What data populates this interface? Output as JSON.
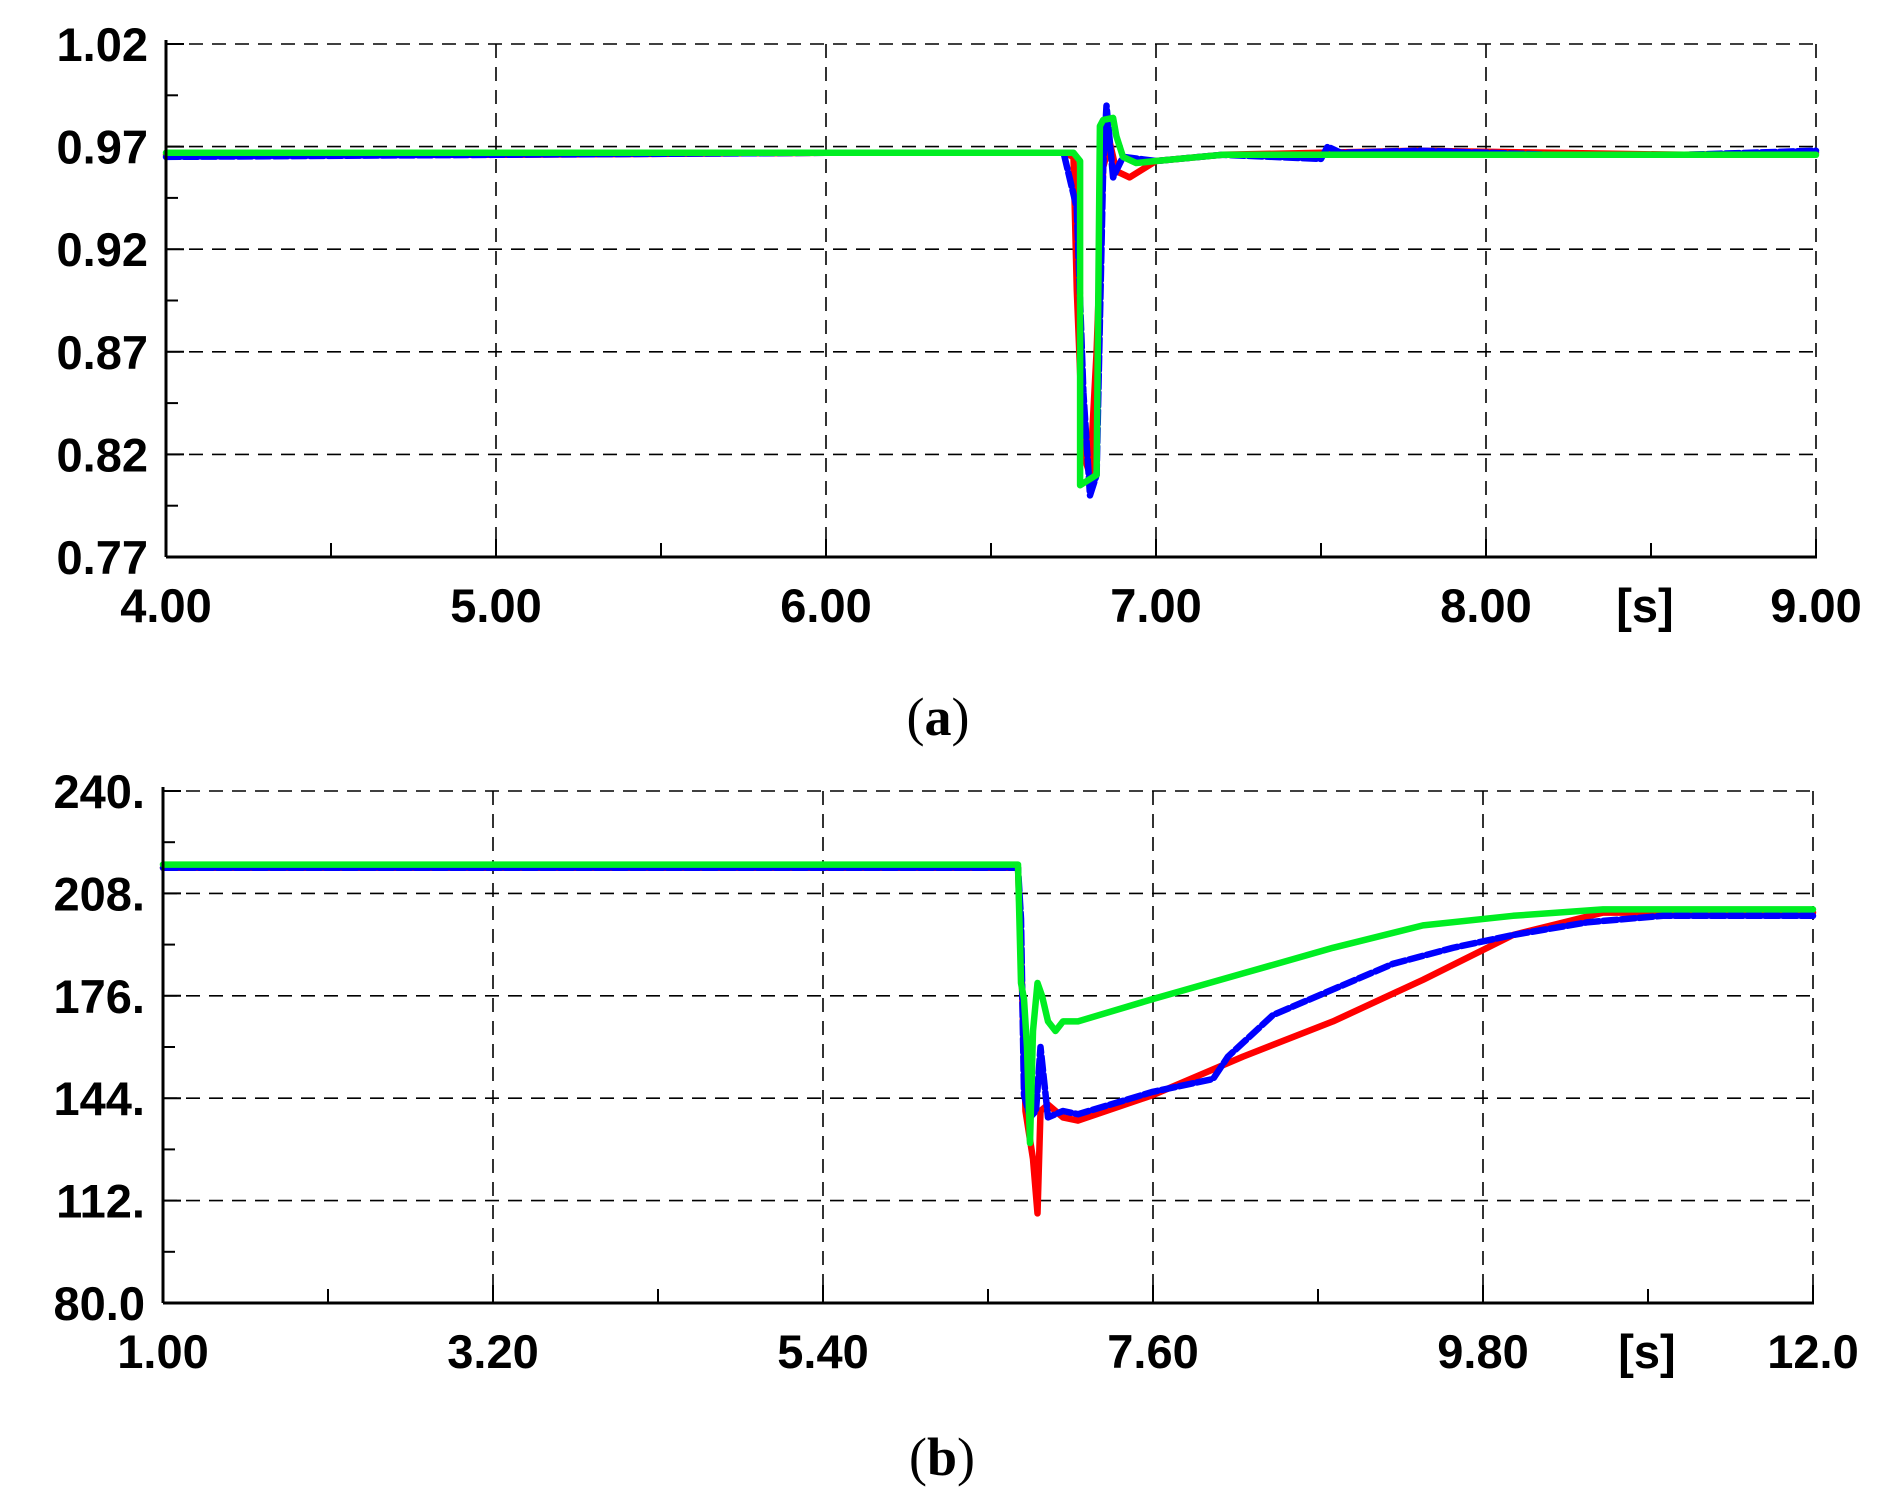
{
  "chart_data": [
    {
      "type": "line",
      "caption": "(a)",
      "x_unit_label": "[s]",
      "xlim": [
        4.0,
        9.0
      ],
      "ylim": [
        0.77,
        1.02
      ],
      "x_ticks": [
        4.0,
        5.0,
        6.0,
        7.0,
        8.0,
        9.0
      ],
      "x_tick_labels": [
        "4.00",
        "5.00",
        "6.00",
        "7.00",
        "8.00",
        "9.00"
      ],
      "y_ticks": [
        0.77,
        0.82,
        0.87,
        0.92,
        0.97,
        1.02
      ],
      "y_tick_labels": [
        "0.77",
        "0.82",
        "0.87",
        "0.92",
        "0.97",
        "1.02"
      ],
      "grid": true,
      "series": [
        {
          "color": "#ff0000",
          "dashed": false,
          "x": [
            4.0,
            5.0,
            6.0,
            6.72,
            6.75,
            6.76,
            6.78,
            6.8,
            6.82,
            6.84,
            6.86,
            6.88,
            6.92,
            7.0,
            7.2,
            7.5,
            7.8,
            8.2,
            8.6,
            9.0
          ],
          "y": [
            0.966,
            0.966,
            0.967,
            0.967,
            0.965,
            0.9,
            0.82,
            0.81,
            0.87,
            0.96,
            0.972,
            0.958,
            0.955,
            0.963,
            0.966,
            0.967,
            0.968,
            0.967,
            0.966,
            0.967
          ]
        },
        {
          "color": "#0000ff",
          "dashed": true,
          "x": [
            4.0,
            5.0,
            6.0,
            6.72,
            6.76,
            6.78,
            6.8,
            6.82,
            6.84,
            6.85,
            6.87,
            6.9,
            7.0,
            7.2,
            7.5,
            7.52,
            7.56,
            7.8,
            8.2,
            8.6,
            9.0
          ],
          "y": [
            0.965,
            0.966,
            0.967,
            0.967,
            0.94,
            0.85,
            0.8,
            0.81,
            0.96,
            0.99,
            0.955,
            0.965,
            0.963,
            0.966,
            0.964,
            0.97,
            0.967,
            0.968,
            0.966,
            0.966,
            0.968
          ]
        },
        {
          "color": "#00ee22",
          "dashed": false,
          "x": [
            4.0,
            5.0,
            6.0,
            6.75,
            6.77,
            6.77,
            6.82,
            6.83,
            6.84,
            6.87,
            6.88,
            6.9,
            6.94,
            7.0,
            7.2,
            7.5,
            7.8,
            8.2,
            8.6,
            9.0
          ],
          "y": [
            0.967,
            0.967,
            0.967,
            0.967,
            0.963,
            0.805,
            0.81,
            0.98,
            0.983,
            0.984,
            0.975,
            0.965,
            0.962,
            0.963,
            0.966,
            0.966,
            0.966,
            0.966,
            0.966,
            0.966
          ]
        }
      ]
    },
    {
      "type": "line",
      "caption": "(b)",
      "x_unit_label": "[s]",
      "xlim": [
        1.0,
        12.0
      ],
      "ylim": [
        80.0,
        240.0
      ],
      "x_ticks": [
        1.0,
        3.2,
        5.4,
        7.6,
        9.8,
        12.0
      ],
      "x_tick_labels": [
        "1.00",
        "3.20",
        "5.40",
        "7.60",
        "9.80",
        "12.0"
      ],
      "x_minor_ticks": [
        2.1,
        4.3,
        6.5,
        8.7,
        10.9
      ],
      "y_ticks": [
        80,
        112,
        144,
        176,
        208,
        240
      ],
      "y_tick_labels": [
        "80.0",
        "112.",
        "144.",
        "176.",
        "208.",
        "240."
      ],
      "grid": true,
      "series": [
        {
          "color": "#ff0000",
          "dashed": false,
          "x": [
            1.0,
            3.2,
            5.4,
            6.7,
            6.72,
            6.75,
            6.8,
            6.83,
            6.85,
            6.9,
            7.0,
            7.1,
            7.6,
            8.2,
            8.8,
            9.4,
            10.0,
            10.6,
            11.0,
            11.5,
            12.0
          ],
          "y": [
            216,
            216,
            216,
            216,
            190,
            140,
            125,
            108,
            140,
            142,
            138,
            137,
            145,
            157,
            168,
            181,
            195,
            202,
            202,
            202,
            202
          ]
        },
        {
          "color": "#0000ff",
          "dashed": true,
          "x": [
            1.0,
            3.2,
            5.4,
            6.7,
            6.72,
            6.74,
            6.78,
            6.82,
            6.85,
            6.9,
            7.0,
            7.1,
            7.6,
            8.0,
            8.1,
            8.4,
            8.8,
            9.2,
            9.6,
            10.0,
            10.5,
            11.0,
            11.5,
            12.0
          ],
          "y": [
            216,
            216,
            216,
            216,
            200,
            145,
            138,
            140,
            160,
            138,
            140,
            139,
            146,
            150,
            157,
            170,
            178,
            186,
            191,
            195,
            199,
            201,
            201,
            201
          ]
        },
        {
          "color": "#00ee22",
          "dashed": false,
          "x": [
            1.0,
            3.2,
            5.4,
            6.7,
            6.72,
            6.74,
            6.76,
            6.78,
            6.8,
            6.83,
            6.86,
            6.9,
            6.95,
            7.0,
            7.1,
            7.6,
            8.2,
            8.8,
            9.4,
            10.0,
            10.6,
            11.0,
            11.5,
            12.0
          ],
          "y": [
            217,
            217,
            217,
            217,
            180,
            175,
            160,
            130,
            165,
            180,
            176,
            168,
            165,
            168,
            168,
            175,
            183,
            191,
            198,
            201,
            203,
            203,
            203,
            203
          ]
        }
      ]
    }
  ]
}
